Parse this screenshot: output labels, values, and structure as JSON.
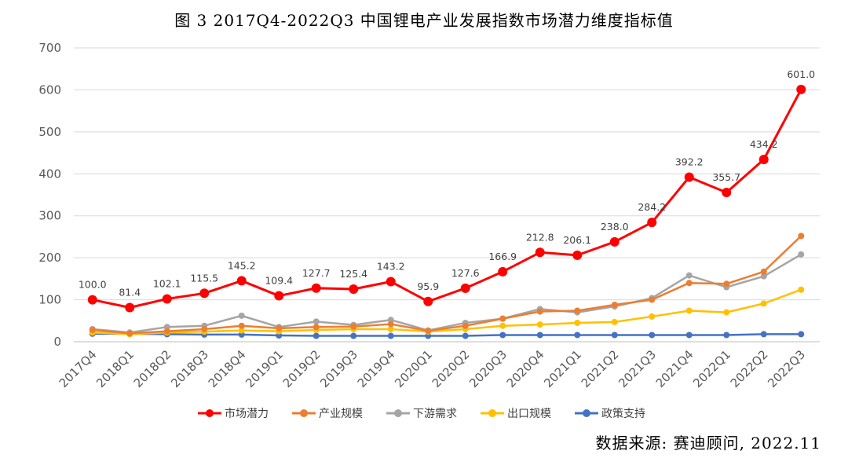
{
  "title": "图 3  2017Q4-2022Q3 中国锂电产业发展指数市场潜力维度指标值",
  "source": "数据来源: 赛迪顾问, 2022.11",
  "chart_data": {
    "type": "line",
    "categories": [
      "2017Q4",
      "2018Q1",
      "2018Q2",
      "2018Q3",
      "2018Q4",
      "2019Q1",
      "2019Q2",
      "2019Q3",
      "2019Q4",
      "2020Q1",
      "2020Q2",
      "2020Q3",
      "2020Q4",
      "2021Q1",
      "2021Q2",
      "2021Q3",
      "2021Q4",
      "2022Q1",
      "2022Q2",
      "2022Q3"
    ],
    "ylim": [
      0,
      700
    ],
    "yticks": [
      0,
      100,
      200,
      300,
      400,
      500,
      600,
      700
    ],
    "grid": true,
    "legend": "bottom",
    "series": [
      {
        "name": "市场潜力",
        "color": "#ff0000",
        "labels": true,
        "values": [
          100.0,
          81.4,
          102.1,
          115.5,
          145.2,
          109.4,
          127.7,
          125.4,
          143.2,
          95.9,
          127.6,
          166.9,
          212.8,
          206.1,
          238.0,
          284.2,
          392.2,
          355.7,
          434.2,
          601.0
        ]
      },
      {
        "name": "产业规模",
        "color": "#ed7d31",
        "labels": false,
        "values": [
          28,
          20,
          25,
          30,
          38,
          32,
          35,
          36,
          42,
          26,
          38,
          55,
          72,
          74,
          88,
          100,
          140,
          138,
          167,
          252
        ]
      },
      {
        "name": "下游需求",
        "color": "#a5a5a5",
        "labels": false,
        "values": [
          30,
          22,
          35,
          38,
          62,
          35,
          48,
          40,
          52,
          27,
          45,
          55,
          78,
          70,
          84,
          104,
          158,
          130,
          156,
          208
        ]
      },
      {
        "name": "出口规模",
        "color": "#ffc000",
        "labels": false,
        "values": [
          22,
          18,
          22,
          24,
          27,
          25,
          28,
          30,
          30,
          24,
          30,
          38,
          41,
          45,
          47,
          60,
          74,
          70,
          91,
          124
        ]
      },
      {
        "name": "政策支持",
        "color": "#4472c4",
        "labels": false,
        "values": [
          19,
          19,
          18,
          17,
          17,
          15,
          14,
          14,
          14,
          14,
          14,
          16,
          16,
          16,
          16,
          16,
          16,
          16,
          18,
          18
        ]
      }
    ]
  }
}
